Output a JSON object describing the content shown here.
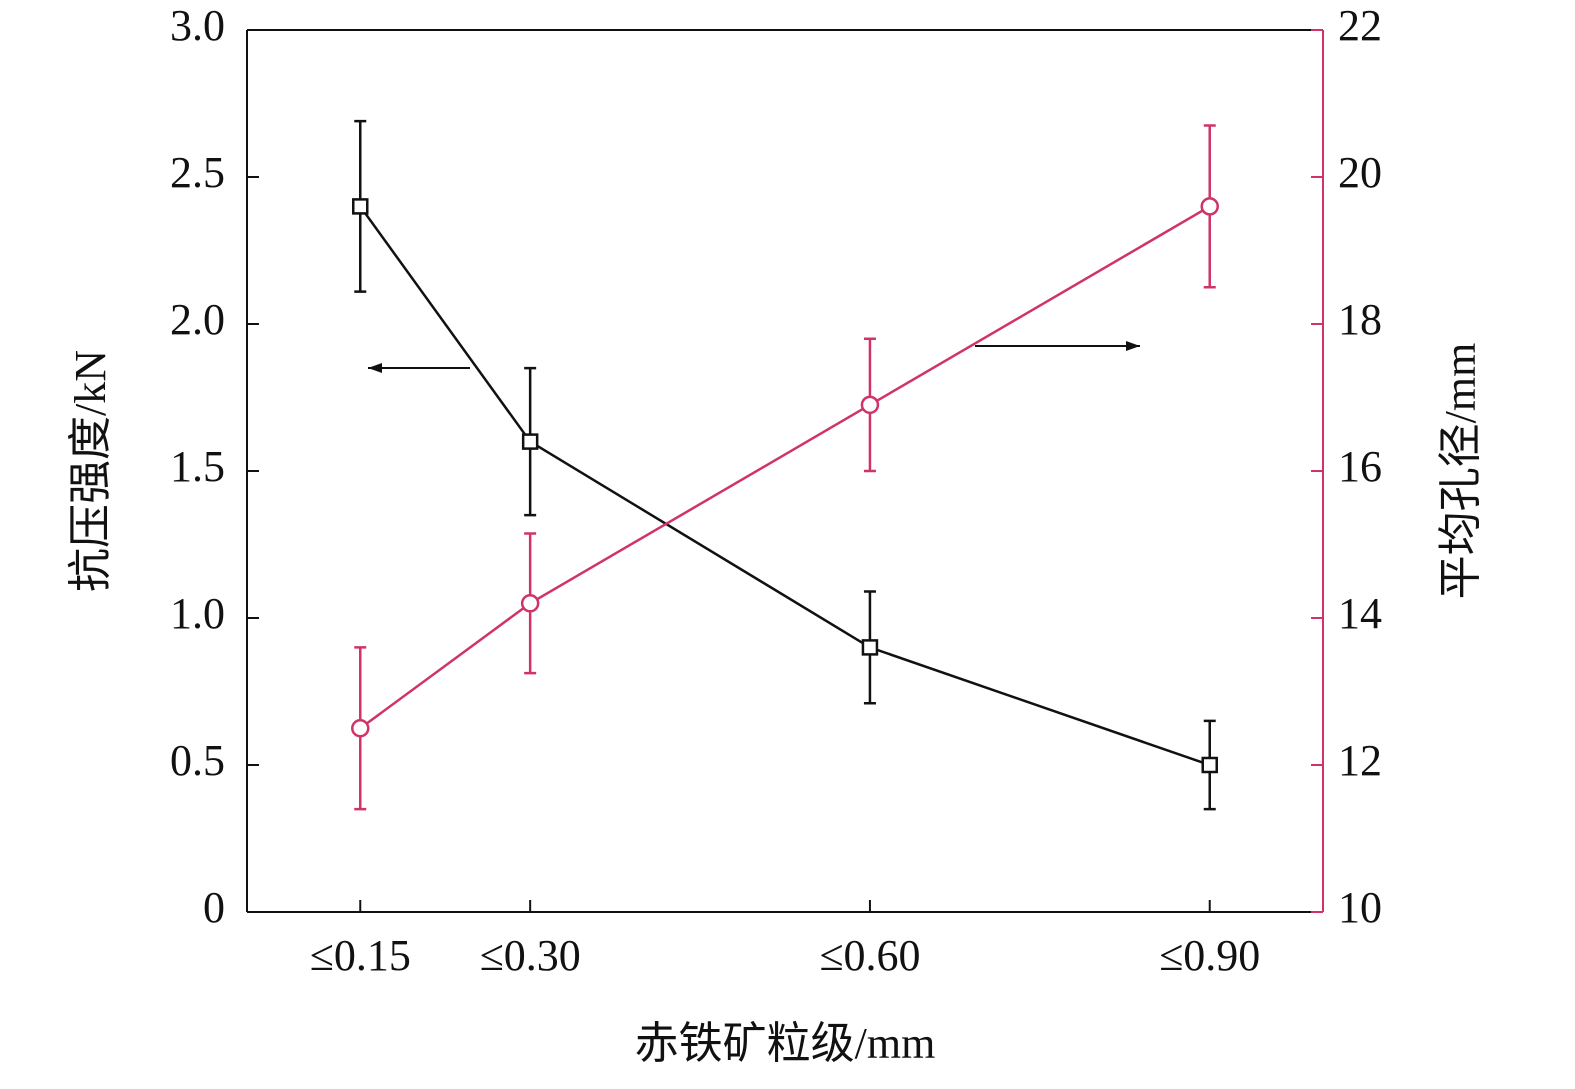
{
  "chart_data": {
    "type": "line",
    "x_label": "赤铁矿粒级/mm",
    "y_label": "抗压强度/kN",
    "y2_label": "平均孔径/mm",
    "x": [
      0.15,
      0.3,
      0.6,
      0.9
    ],
    "xlim": [
      0.05,
      1.0
    ],
    "xticks": [
      {
        "value": 0.15,
        "label": "≤0.15"
      },
      {
        "value": 0.3,
        "label": "≤0.30"
      },
      {
        "value": 0.6,
        "label": "≤0.60"
      },
      {
        "value": 0.9,
        "label": "≤0.90"
      }
    ],
    "ylim": [
      0,
      3
    ],
    "yticks": [
      0,
      0.5,
      {
        "value": 1,
        "label": "1.0"
      },
      1.5,
      {
        "value": 2,
        "label": "2.0"
      },
      2.5,
      {
        "value": 3,
        "label": "3.0"
      }
    ],
    "y2lim": [
      10,
      22
    ],
    "y2ticks": [
      10,
      12,
      14,
      16,
      18,
      20,
      22
    ],
    "y2color": "#d0336a",
    "series": [
      {
        "color": "#111111",
        "marker": "square",
        "values": [
          2.4,
          1.6,
          0.9,
          0.5
        ],
        "errors": [
          0.29,
          0.25,
          0.19,
          0.15
        ]
      },
      {
        "color": "#d0336a",
        "marker": "circle",
        "axis": "y2",
        "values": [
          12.5,
          14.2,
          16.9,
          19.6
        ],
        "errors": [
          1.1,
          0.95,
          0.9,
          1.1
        ]
      }
    ]
  }
}
